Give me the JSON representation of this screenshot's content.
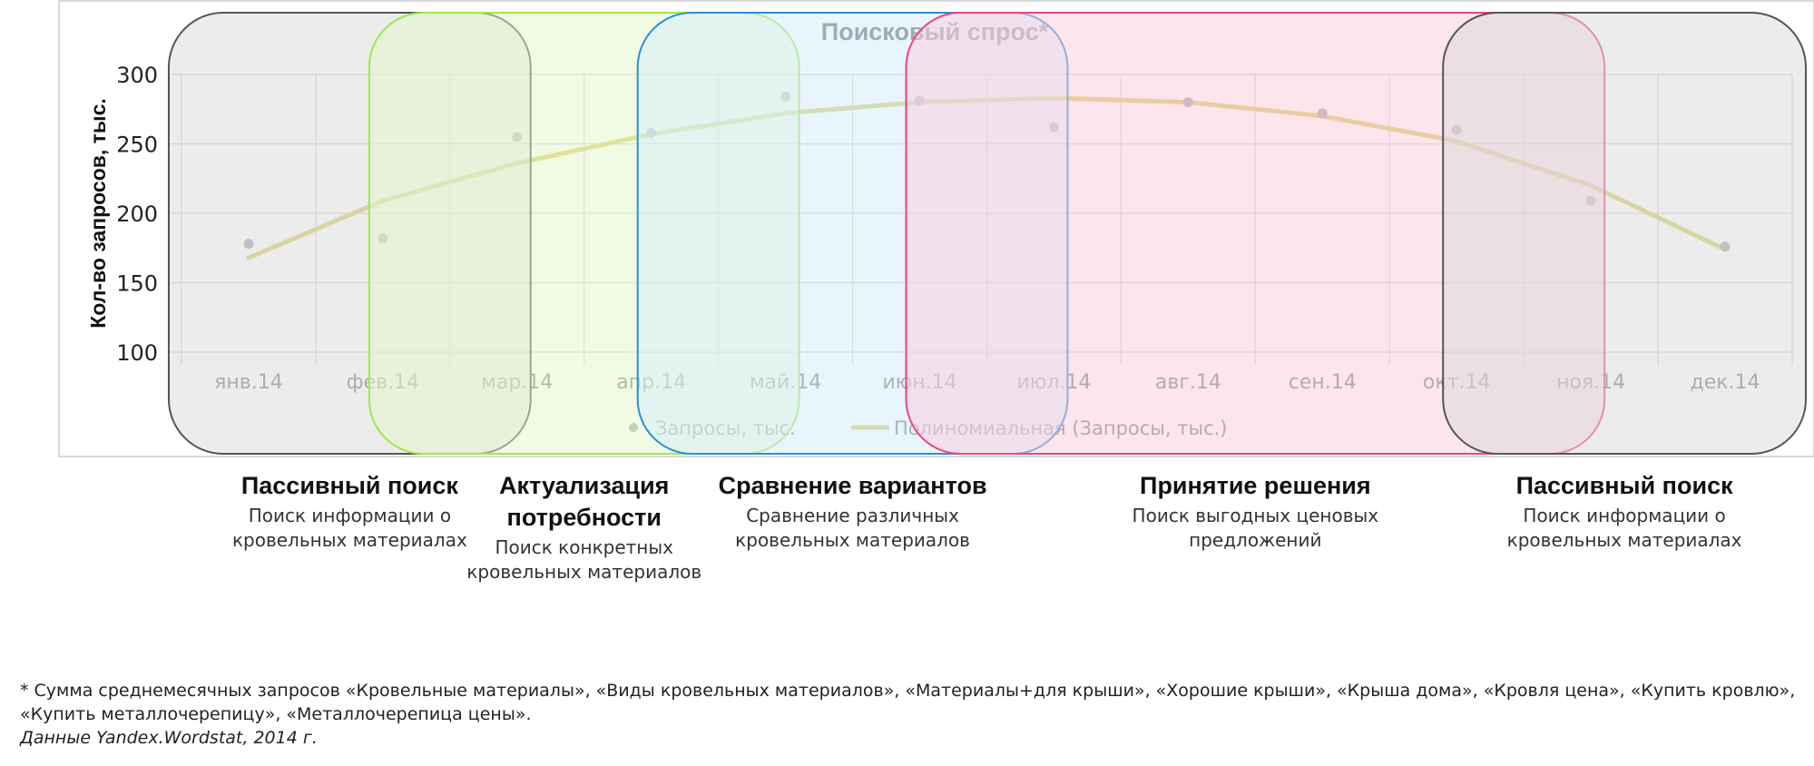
{
  "chart_data": {
    "type": "scatter",
    "title": "Поисковый спрос*",
    "ylabel": "Кол-во запросов, тыс.",
    "xlabel": "",
    "categories": [
      "янв.14",
      "фев.14",
      "мар.14",
      "апр.14",
      "май.14",
      "июн.14",
      "июл.14",
      "авг.14",
      "сен.14",
      "окт.14",
      "ноя.14",
      "дек.14"
    ],
    "ylim": [
      100,
      300
    ],
    "yticks": [
      "100",
      "150",
      "200",
      "250",
      "300"
    ],
    "grid": true,
    "legend_position": "bottom",
    "series": [
      {
        "name": "Запросы, тыс.",
        "type": "scatter",
        "values": [
          178,
          182,
          255,
          258,
          284,
          281,
          262,
          280,
          272,
          260,
          209,
          176
        ],
        "color": "#a6a6a6"
      },
      {
        "name": "Полиномиальная (Запросы, тыс.)",
        "type": "line",
        "values": [
          168,
          209,
          236,
          257,
          272,
          280,
          283,
          280,
          270,
          252,
          220,
          174
        ],
        "color": "#d9cf6f"
      }
    ]
  },
  "stages": [
    {
      "title": "Пассивный поиск",
      "desc": "Поиск информации о кровельных материалах",
      "color": "#555555",
      "fill": "#d9d9d9",
      "start": 0.0,
      "end": 2.5
    },
    {
      "title": "Актуализация потребности",
      "desc": "Поиск конкретных кровельных материалов",
      "color": "#9ce84f",
      "fill": "#e4f8c9",
      "start": 1.5,
      "end": 4.5
    },
    {
      "title": "Сравнение вариантов",
      "desc": "Сравнение различных кровельных материалов",
      "color": "#2a8fd8",
      "fill": "#d3ebfb",
      "start": 3.5,
      "end": 6.5
    },
    {
      "title": "Принятие решения",
      "desc": "Поиск выгодных ценовых предложений",
      "color": "#e8477f",
      "fill": "#fccbdc",
      "start": 5.5,
      "end": 10.5
    },
    {
      "title": "Пассивный поиск",
      "desc": "Поиск информации о кровельных материалах",
      "color": "#555555",
      "fill": "#d9d9d9",
      "start": 9.5,
      "end": 12.0
    }
  ],
  "footnote": "* Сумма среднемесячных запросов «Кровельные материалы», «Виды кровельных материалов», «Материалы+для крыши», «Хорошие крыши», «Крыша дома», «Кровля цена», «Купить кровлю», «Купить металлочерепицу»,  «Металлочерепица цены».",
  "source": "Данные Yandex.Wordstat, 2014 г."
}
